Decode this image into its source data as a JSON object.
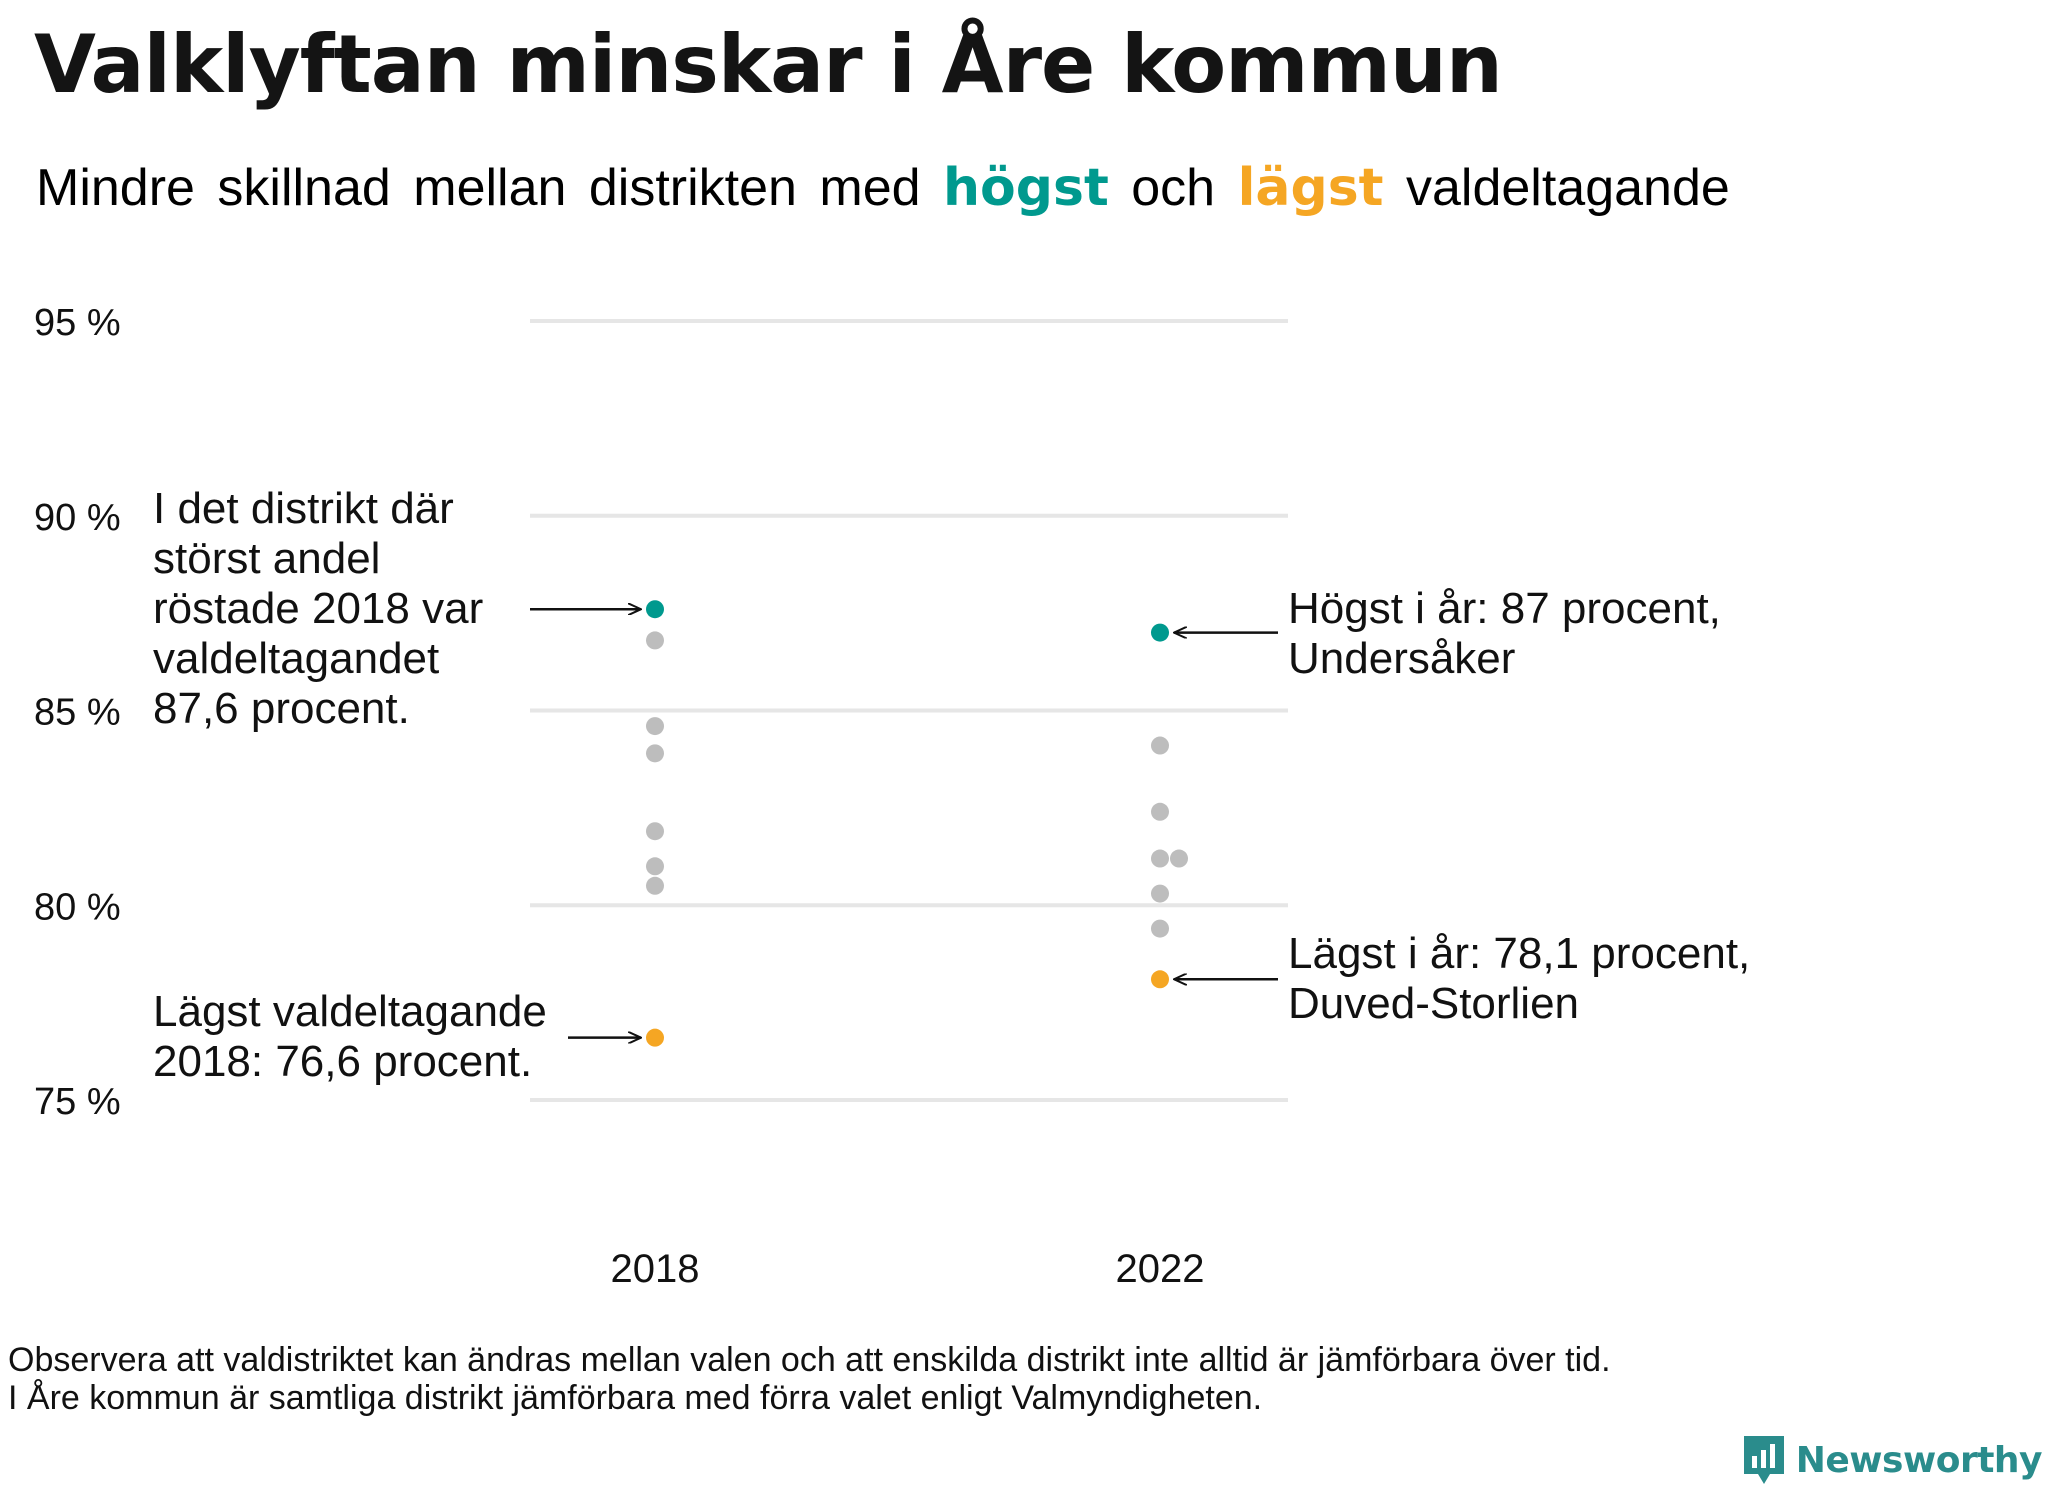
{
  "title": "Valklyftan minskar i Åre kommun",
  "subtitle": {
    "part1": "Mindre skillnad mellan distrikten med",
    "highest_word": "högst",
    "part2": "och",
    "lowest_word": "lägst",
    "part3": "valdeltagande"
  },
  "colors": {
    "highest": "#00998e",
    "lowest": "#f5a623",
    "other": "#bdbdbd",
    "grid": "#e6e6e6",
    "brand": "#2a8c8c"
  },
  "chart_data": {
    "type": "scatter",
    "categories": [
      "2018",
      "2022"
    ],
    "y_ticks": [
      "75 %",
      "80 %",
      "85 %",
      "90 %",
      "95 %"
    ],
    "ylim": [
      75,
      95
    ],
    "grid": true,
    "series": [
      {
        "category": "2018",
        "highest": 87.6,
        "lowest": 76.6,
        "others": [
          86.8,
          84.6,
          83.9,
          81.9,
          81.0,
          80.5
        ]
      },
      {
        "category": "2022",
        "highest": 87.0,
        "lowest": 78.1,
        "others": [
          84.1,
          82.4,
          81.2,
          81.2,
          80.3,
          79.4
        ]
      }
    ],
    "annotations": {
      "high_2018": [
        "I det distrikt där",
        "störst andel",
        "röstade 2018 var",
        "valdeltagandet",
        "87,6 procent."
      ],
      "low_2018": [
        "Lägst valdeltagande",
        "2018: 76,6 procent."
      ],
      "high_2022": [
        "Högst i år: 87 procent,",
        "Undersåker"
      ],
      "low_2022": [
        "Lägst i år: 78,1 procent,",
        "Duved-Storlien"
      ]
    }
  },
  "footnote": [
    "Observera att valdistriktet kan ändras mellan valen och att enskilda distrikt inte alltid är jämförbara över tid.",
    "I Åre kommun är samtliga distrikt jämförbara med förra valet enligt Valmyndigheten."
  ],
  "brand": {
    "name": "Newsworthy",
    "icon": "bar-chart-speech-bubble-icon"
  }
}
